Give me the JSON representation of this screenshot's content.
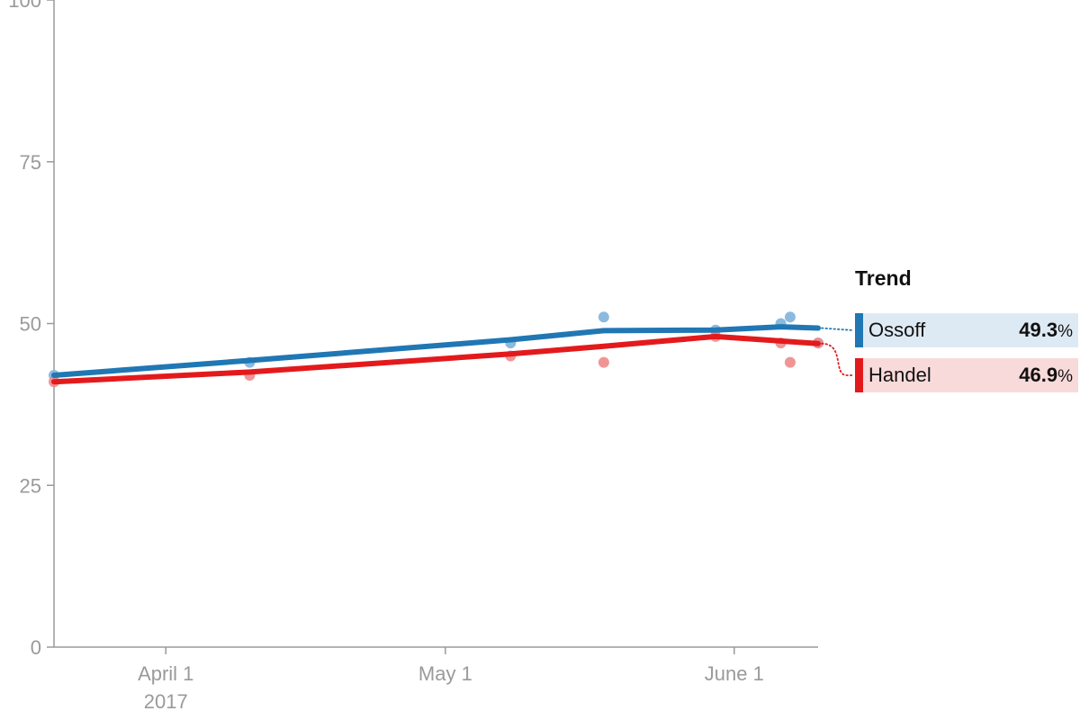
{
  "chart_data": {
    "type": "line",
    "ylim": [
      0,
      100
    ],
    "y_ticks": [
      "0",
      "25",
      "50",
      "75",
      "100"
    ],
    "xlim": [
      "2017-03-20",
      "2017-06-10"
    ],
    "x_ticks": [
      {
        "date": "2017-04-01",
        "label": "April 1",
        "sublabel": "2017"
      },
      {
        "date": "2017-05-01",
        "label": "May 1",
        "sublabel": ""
      },
      {
        "date": "2017-06-01",
        "label": "June 1",
        "sublabel": ""
      }
    ],
    "series": [
      {
        "name": "Ossoff",
        "color": "#2077b4",
        "point_color": "#7fb3da",
        "trend": [
          {
            "x": "2017-03-20",
            "y": 42
          },
          {
            "x": "2017-04-10",
            "y": 44.3
          },
          {
            "x": "2017-05-08",
            "y": 47.5
          },
          {
            "x": "2017-05-18",
            "y": 48.9
          },
          {
            "x": "2017-05-30",
            "y": 49
          },
          {
            "x": "2017-06-06",
            "y": 49.5
          },
          {
            "x": "2017-06-10",
            "y": 49.3
          }
        ],
        "polls": [
          {
            "x": "2017-03-20",
            "y": 42
          },
          {
            "x": "2017-04-10",
            "y": 44
          },
          {
            "x": "2017-05-08",
            "y": 47
          },
          {
            "x": "2017-05-18",
            "y": 51
          },
          {
            "x": "2017-05-30",
            "y": 49
          },
          {
            "x": "2017-06-06",
            "y": 50
          },
          {
            "x": "2017-06-07",
            "y": 51
          },
          {
            "x": "2017-06-10",
            "y": 47
          }
        ]
      },
      {
        "name": "Handel",
        "color": "#e31a1c",
        "point_color": "#ee8a8b",
        "trend": [
          {
            "x": "2017-03-20",
            "y": 41
          },
          {
            "x": "2017-04-10",
            "y": 42.5
          },
          {
            "x": "2017-05-08",
            "y": 45.3
          },
          {
            "x": "2017-05-18",
            "y": 46.5
          },
          {
            "x": "2017-05-30",
            "y": 48
          },
          {
            "x": "2017-06-06",
            "y": 47.3
          },
          {
            "x": "2017-06-10",
            "y": 46.9
          }
        ],
        "polls": [
          {
            "x": "2017-03-20",
            "y": 41
          },
          {
            "x": "2017-04-10",
            "y": 42
          },
          {
            "x": "2017-05-08",
            "y": 45
          },
          {
            "x": "2017-05-18",
            "y": 44
          },
          {
            "x": "2017-05-30",
            "y": 48
          },
          {
            "x": "2017-06-06",
            "y": 47
          },
          {
            "x": "2017-06-07",
            "y": 44
          },
          {
            "x": "2017-06-10",
            "y": 47
          }
        ]
      }
    ]
  },
  "legend": {
    "title": "Trend",
    "items": [
      {
        "name": "Ossoff",
        "value": "49.3",
        "unit": "%",
        "color": "#2077b4",
        "bg": "#deeaf3"
      },
      {
        "name": "Handel",
        "value": "46.9",
        "unit": "%",
        "color": "#e31a1c",
        "bg": "#f9dada"
      }
    ]
  }
}
